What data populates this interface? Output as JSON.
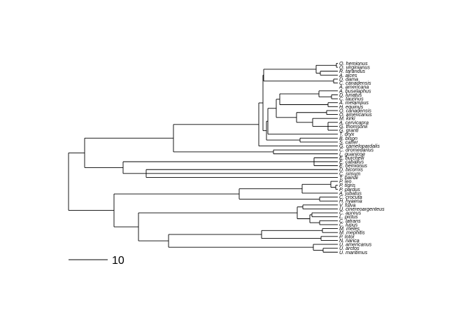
{
  "tree": {
    "tips": [
      "O. hemionus",
      "O. virginianus",
      "R. tarandus",
      "A. alces",
      "D. dama",
      "C. canadensis",
      "A. americana",
      "A. buselaphus",
      "D. lunatus",
      "C. taurinus",
      "A. melampus",
      "H. equinus",
      "O. canadensis",
      "O. americanus",
      "M. kirki",
      "A. cervicapra",
      "G. thomsonii",
      "G. granti",
      "T. oryx",
      "B. bison",
      "S. caffer",
      "G. camelopardalis",
      "C. dromedarius",
      "L. guanicoe",
      "E. burchelli",
      "E. caballus",
      "E. hemionus",
      "D. bicornis",
      "C. simum",
      "T. bairdii",
      "P. leo",
      "P. tigris",
      "P. pardus",
      "A. jubatus",
      "C. crocuta",
      "H. hyaena",
      "V. fulva",
      "U. cinereoargenteus",
      "C. aureus",
      "L. pictus",
      "C. latrans",
      "C. lupus",
      "M. meles",
      "M. mephitis",
      "P. lotor",
      "N. narica",
      "U. americanus",
      "U. arctos",
      "U. maritimus"
    ],
    "scale_bar_label": "10"
  }
}
